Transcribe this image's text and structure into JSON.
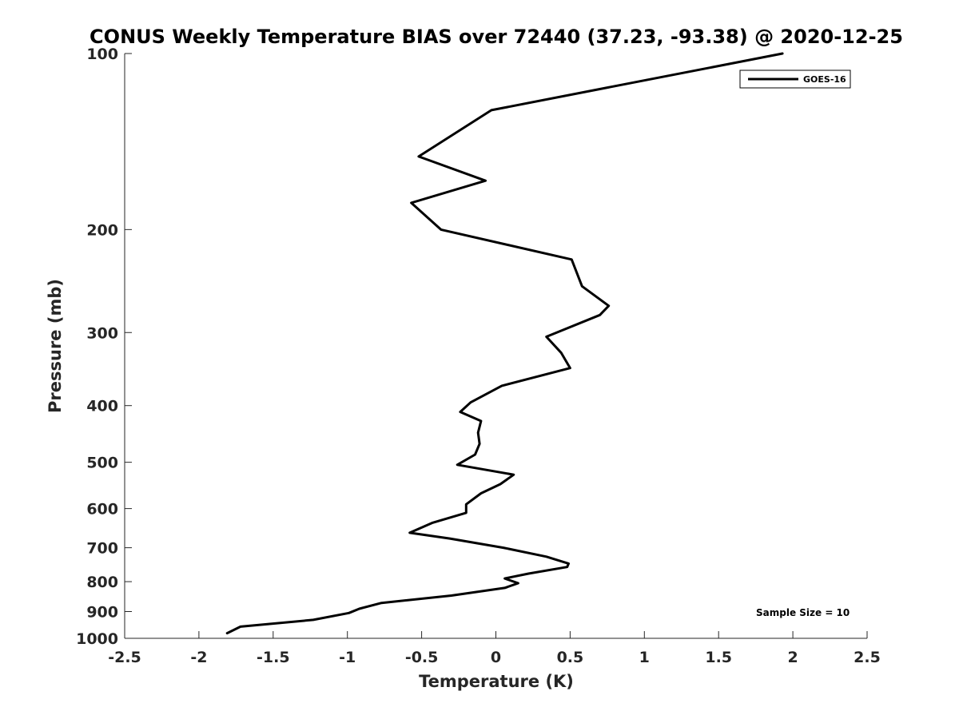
{
  "chart_data": {
    "type": "line",
    "title": "CONUS Weekly Temperature BIAS over 72440 (37.23, -93.38) @ 2020-12-25",
    "xlabel": "Temperature (K)",
    "ylabel": "Pressure (mb)",
    "xlim": [
      -2.5,
      2.5
    ],
    "ylim": [
      100,
      1000
    ],
    "yscale": "log",
    "y_reversed": true,
    "x_ticks": [
      -2.5,
      -2,
      -1.5,
      -1,
      -0.5,
      0,
      0.5,
      1,
      1.5,
      2,
      2.5
    ],
    "x_tick_labels": [
      "-2.5",
      "-2",
      "-1.5",
      "-1",
      "-0.5",
      "0",
      "0.5",
      "1",
      "1.5",
      "2",
      "2.5"
    ],
    "y_ticks": [
      100,
      200,
      300,
      400,
      500,
      600,
      700,
      800,
      900,
      1000
    ],
    "y_tick_labels": [
      "100",
      "200",
      "300",
      "400",
      "500",
      "600",
      "700",
      "800",
      "900",
      "1000"
    ],
    "grid": false,
    "legend_position": "top-right",
    "annotation": "Sample Size = 10",
    "series": [
      {
        "name": "GOES-16",
        "color": "#000000",
        "x": [
          1.93,
          -0.03,
          -0.52,
          -0.07,
          -0.57,
          -0.37,
          0.51,
          0.58,
          0.76,
          0.7,
          0.34,
          0.44,
          0.5,
          0.04,
          -0.17,
          -0.24,
          -0.1,
          -0.12,
          -0.11,
          -0.14,
          -0.26,
          0.12,
          0.03,
          -0.1,
          -0.2,
          -0.2,
          -0.43,
          -0.58,
          -0.31,
          0.05,
          0.34,
          0.49,
          0.48,
          0.22,
          0.06,
          0.15,
          0.06,
          -0.3,
          -0.77,
          -0.92,
          -0.99,
          -1.23,
          -1.72,
          -1.81
        ],
        "y": [
          100,
          125,
          150,
          165,
          180,
          200,
          225,
          250,
          270,
          280,
          305,
          325,
          345,
          370,
          395,
          410,
          425,
          445,
          465,
          485,
          505,
          525,
          545,
          565,
          590,
          610,
          635,
          660,
          675,
          700,
          725,
          745,
          755,
          775,
          790,
          805,
          820,
          845,
          870,
          890,
          905,
          930,
          955,
          980
        ]
      }
    ]
  }
}
